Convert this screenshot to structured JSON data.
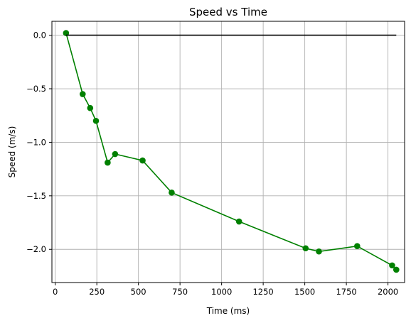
{
  "chart_data": {
    "type": "line",
    "title": "Speed vs Time",
    "xlabel": "Time (ms)",
    "ylabel": "Speed (m/s)",
    "xlim": [
      -20,
      2100
    ],
    "ylim": [
      -2.31,
      0.13
    ],
    "xticks": [
      0,
      250,
      500,
      750,
      1000,
      1250,
      1500,
      1750,
      2000
    ],
    "xtick_labels": [
      "0",
      "250",
      "500",
      "750",
      "1000",
      "1250",
      "1500",
      "1750",
      "2000"
    ],
    "yticks": [
      0.0,
      -0.5,
      -1.0,
      -1.5,
      -2.0
    ],
    "ytick_labels": [
      "0.0",
      "−0.5",
      "−1.0",
      "−1.5",
      "−2.0"
    ],
    "grid": true,
    "series": [
      {
        "color": "#008000",
        "marker": "circle",
        "x": [
          65,
          165,
          210,
          245,
          315,
          360,
          525,
          700,
          1105,
          1505,
          1585,
          1815,
          2025,
          2050
        ],
        "y": [
          0.02,
          -0.55,
          -0.68,
          -0.8,
          -1.19,
          -1.11,
          -1.17,
          -1.47,
          -1.74,
          -1.99,
          -2.02,
          -1.97,
          -2.15,
          -2.19
        ]
      },
      {
        "color": "#000000",
        "marker": "none",
        "x": [
          65,
          2050
        ],
        "y": [
          0.0,
          0.0
        ]
      }
    ]
  }
}
